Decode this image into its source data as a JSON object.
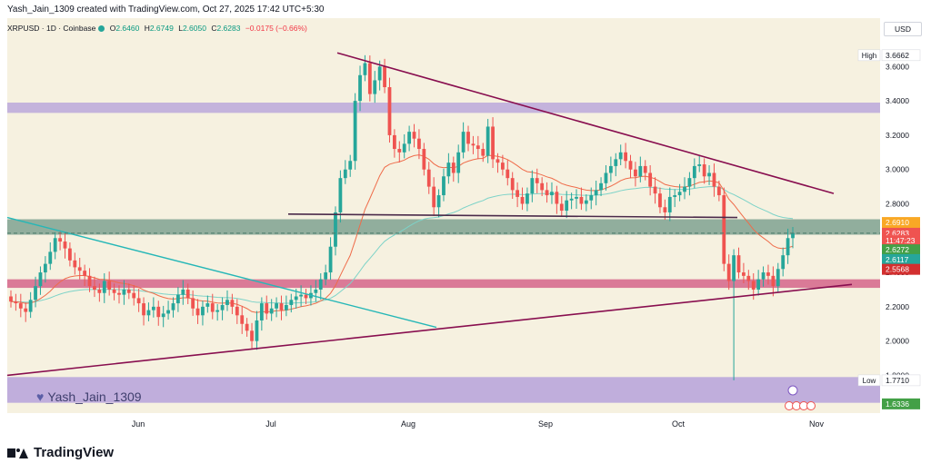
{
  "header": {
    "created_by": "Yash_Jain_1309 created with TradingView.com, Oct 27, 2025 17:42 UTC+5:30"
  },
  "ticker": {
    "symbol": "XRPUSD · 1D · Coinbase",
    "open_label": "O",
    "open": "2.6460",
    "high_label": "H",
    "high": "2.6749",
    "low_label": "L",
    "low": "2.6050",
    "close_label": "C",
    "close": "2.6283",
    "change": "−0.0175 (−0.66%)"
  },
  "currency": "USD",
  "watermark": "Yash_Jain_1309",
  "footer": {
    "brand": "TradingView"
  },
  "colors": {
    "up": "#26a69a",
    "down": "#ef5350",
    "trendline": "#880e4f",
    "support_zone": "#5b8a7a",
    "resistance_zone": "#b39ddb",
    "mid_zone": "#c2185b",
    "ema_fast": "#ef6c4a",
    "ema_slow": "#7dd3c8",
    "cyan_line": "#26b7b7"
  },
  "chart_data": {
    "type": "candlestick",
    "symbol": "XRPUSD",
    "interval": "1D",
    "x_ticks": [
      "Jun",
      "Jul",
      "Aug",
      "Sep",
      "Oct",
      "Nov"
    ],
    "y_ticks": [
      1.8,
      2.0,
      2.2,
      2.4,
      2.6,
      2.8,
      3.0,
      3.2,
      3.4,
      3.6
    ],
    "y_tick_labels": [
      "1.8000",
      "2.0000",
      "2.2000",
      "2.4000",
      "2.6000",
      "2.8000",
      "3.0000",
      "3.2000",
      "3.4000",
      "3.6000"
    ],
    "ylim": [
      1.58,
      3.75
    ],
    "price_labels": [
      {
        "label": "High",
        "value": "3.6662"
      },
      {
        "label": "",
        "value": "2.6910"
      },
      {
        "label": "",
        "value": "2.6283"
      },
      {
        "label": "",
        "value": "11:47:23"
      },
      {
        "label": "",
        "value": "2.6272"
      },
      {
        "label": "",
        "value": "2.6117"
      },
      {
        "label": "",
        "value": "2.5568"
      },
      {
        "label": "Low",
        "value": "1.7710"
      },
      {
        "label": "",
        "value": "1.6336"
      }
    ],
    "zones": [
      {
        "name": "resistance",
        "from": 3.33,
        "to": 3.39
      },
      {
        "name": "support",
        "from": 2.62,
        "to": 2.71
      },
      {
        "name": "mid",
        "from": 2.31,
        "to": 2.36
      },
      {
        "name": "bottom",
        "from": 1.64,
        "to": 1.79
      }
    ],
    "closes": [
      2.23,
      2.22,
      2.19,
      2.17,
      2.24,
      2.32,
      2.4,
      2.45,
      2.52,
      2.6,
      2.58,
      2.54,
      2.47,
      2.43,
      2.41,
      2.38,
      2.32,
      2.3,
      2.28,
      2.35,
      2.3,
      2.28,
      2.27,
      2.3,
      2.28,
      2.25,
      2.22,
      2.15,
      2.18,
      2.2,
      2.14,
      2.16,
      2.18,
      2.22,
      2.27,
      2.3,
      2.25,
      2.19,
      2.15,
      2.2,
      2.22,
      2.17,
      2.18,
      2.21,
      2.24,
      2.2,
      2.15,
      2.1,
      2.06,
      2.0,
      2.12,
      2.22,
      2.16,
      2.19,
      2.22,
      2.18,
      2.21,
      2.24,
      2.26,
      2.27,
      2.25,
      2.28,
      2.3,
      2.36,
      2.4,
      2.55,
      2.75,
      2.95,
      3.0,
      3.05,
      3.4,
      3.55,
      3.62,
      3.44,
      3.52,
      3.6,
      3.48,
      3.2,
      3.12,
      3.1,
      3.15,
      3.22,
      3.18,
      3.12,
      3.0,
      2.9,
      2.78,
      2.85,
      2.96,
      3.04,
      2.98,
      3.1,
      3.22,
      3.15,
      3.14,
      3.12,
      3.08,
      3.25,
      3.06,
      3.04,
      3.0,
      2.95,
      2.88,
      2.84,
      2.8,
      2.86,
      2.95,
      2.92,
      2.88,
      2.85,
      2.87,
      2.8,
      2.76,
      2.82,
      2.83,
      2.84,
      2.8,
      2.82,
      2.85,
      2.88,
      2.92,
      2.98,
      3.02,
      3.06,
      3.1,
      3.05,
      3.0,
      2.96,
      3.02,
      2.98,
      2.9,
      2.86,
      2.78,
      2.75,
      2.84,
      2.85,
      2.87,
      2.9,
      2.95,
      3.02,
      3.03,
      2.96,
      2.98,
      2.9,
      2.85,
      2.45,
      2.35,
      2.5,
      2.4,
      2.38,
      2.35,
      2.3,
      2.36,
      2.4,
      2.38,
      2.32,
      2.42,
      2.5,
      2.6,
      2.63
    ]
  }
}
